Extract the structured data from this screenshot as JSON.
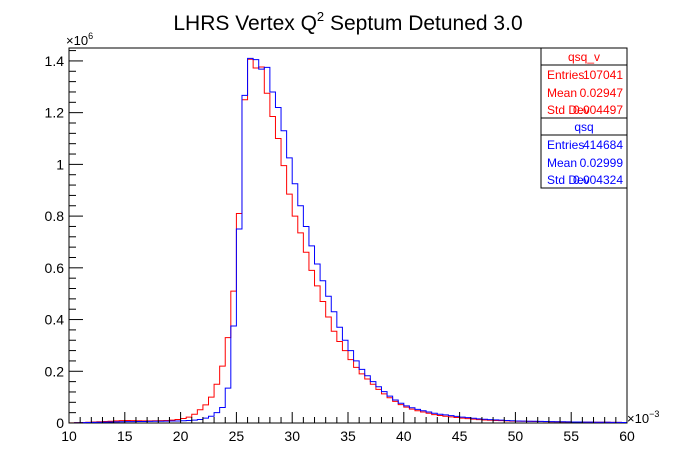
{
  "chart_data": {
    "type": "histogram",
    "title_main": "LHRS Vertex Q",
    "title_sup": "2",
    "title_rest": " Septum Detuned 3.0",
    "x_multiplier": "×10",
    "x_exponent": "−3",
    "y_multiplier": "×10",
    "y_exponent": "6",
    "xlim": [
      10,
      60
    ],
    "ylim": [
      0,
      1.45
    ],
    "x_ticks": [
      "10",
      "15",
      "20",
      "25",
      "30",
      "35",
      "40",
      "45",
      "50",
      "55",
      "60"
    ],
    "y_ticks": [
      "0",
      "0.2",
      "0.4",
      "0.6",
      "0.8",
      "1",
      "1.2",
      "1.4"
    ],
    "grid": false,
    "legend_position": "top-right",
    "bin_width": 0.5,
    "series": [
      {
        "name": "qsq_v",
        "color": "#ff0000",
        "stats": {
          "label_entries": "Entries",
          "entries": "107041",
          "label_mean": "Mean",
          "mean": "0.02947",
          "label_std": "Std Dev",
          "std": "0.004497"
        },
        "points": [
          [
            10,
            0.0
          ],
          [
            13,
            0.005
          ],
          [
            15,
            0.01
          ],
          [
            17,
            0.008
          ],
          [
            19,
            0.01
          ],
          [
            20,
            0.015
          ],
          [
            21,
            0.025
          ],
          [
            22,
            0.06
          ],
          [
            22.5,
            0.08
          ],
          [
            23,
            0.12
          ],
          [
            23.5,
            0.18
          ],
          [
            24,
            0.26
          ],
          [
            24.5,
            0.4
          ],
          [
            25,
            0.62
          ],
          [
            25.5,
            1.0
          ],
          [
            25.8,
            1.3
          ],
          [
            26,
            1.39
          ],
          [
            26.3,
            1.41
          ],
          [
            26.6,
            1.38
          ],
          [
            27,
            1.36
          ],
          [
            27.3,
            1.38
          ],
          [
            27.5,
            1.33
          ],
          [
            28,
            1.22
          ],
          [
            28.5,
            1.15
          ],
          [
            29,
            1.05
          ],
          [
            29.5,
            0.94
          ],
          [
            30,
            0.83
          ],
          [
            30.5,
            0.77
          ],
          [
            31,
            0.7
          ],
          [
            31.5,
            0.62
          ],
          [
            32,
            0.56
          ],
          [
            32.5,
            0.5
          ],
          [
            33,
            0.44
          ],
          [
            33.5,
            0.38
          ],
          [
            34,
            0.33
          ],
          [
            34.5,
            0.3
          ],
          [
            35,
            0.26
          ],
          [
            36,
            0.2
          ],
          [
            37,
            0.16
          ],
          [
            38,
            0.12
          ],
          [
            39,
            0.09
          ],
          [
            40,
            0.065
          ],
          [
            41,
            0.05
          ],
          [
            42,
            0.04
          ],
          [
            43,
            0.03
          ],
          [
            44,
            0.025
          ],
          [
            45,
            0.02
          ],
          [
            47,
            0.012
          ],
          [
            50,
            0.007
          ],
          [
            55,
            0.004
          ],
          [
            60,
            0.002
          ]
        ]
      },
      {
        "name": "qsq",
        "color": "#0000ff",
        "stats": {
          "label_entries": "Entries",
          "entries": "414684",
          "label_mean": "Mean",
          "mean": "0.02999",
          "label_std": "Std Dev",
          "std": "0.004324"
        },
        "points": [
          [
            10,
            0.0
          ],
          [
            15,
            0.005
          ],
          [
            20,
            0.008
          ],
          [
            21,
            0.01
          ],
          [
            22,
            0.015
          ],
          [
            23,
            0.03
          ],
          [
            24,
            0.07
          ],
          [
            24.5,
            0.2
          ],
          [
            25,
            0.55
          ],
          [
            25.5,
            0.95
          ],
          [
            25.8,
            1.33
          ],
          [
            26,
            1.42
          ],
          [
            26.5,
            1.4
          ],
          [
            27,
            1.41
          ],
          [
            27.3,
            1.36
          ],
          [
            27.7,
            1.39
          ],
          [
            28,
            1.3
          ],
          [
            28.5,
            1.26
          ],
          [
            29,
            1.18
          ],
          [
            29.5,
            1.08
          ],
          [
            30,
            0.97
          ],
          [
            30.5,
            0.88
          ],
          [
            31,
            0.8
          ],
          [
            31.5,
            0.72
          ],
          [
            32,
            0.65
          ],
          [
            32.5,
            0.58
          ],
          [
            33,
            0.52
          ],
          [
            33.5,
            0.46
          ],
          [
            34,
            0.4
          ],
          [
            34.5,
            0.34
          ],
          [
            35,
            0.3
          ],
          [
            36,
            0.22
          ],
          [
            37,
            0.17
          ],
          [
            38,
            0.13
          ],
          [
            39,
            0.095
          ],
          [
            40,
            0.07
          ],
          [
            41,
            0.055
          ],
          [
            42,
            0.045
          ],
          [
            43,
            0.035
          ],
          [
            44,
            0.03
          ],
          [
            45,
            0.024
          ],
          [
            47,
            0.015
          ],
          [
            50,
            0.008
          ],
          [
            55,
            0.004
          ],
          [
            60,
            0.002
          ]
        ]
      }
    ]
  }
}
